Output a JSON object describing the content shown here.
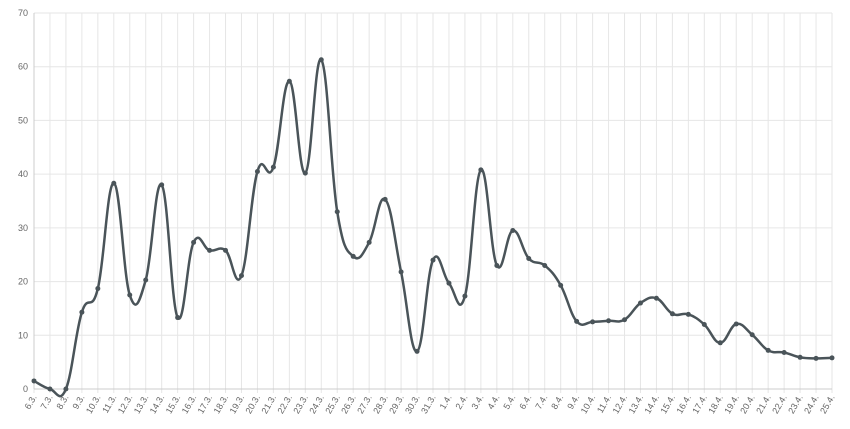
{
  "chart_data": {
    "type": "line",
    "categories": [
      "6.3.",
      "7.3.",
      "8.3.",
      "9.3.",
      "10.3.",
      "11.3.",
      "12.3.",
      "13.3.",
      "14.3.",
      "15.3.",
      "16.3.",
      "17.3.",
      "18.3.",
      "19.3.",
      "20.3.",
      "21.3.",
      "22.3.",
      "23.3.",
      "24.3.",
      "25.3.",
      "26.3.",
      "27.3.",
      "28.3.",
      "29.3.",
      "30.3.",
      "31.3.",
      "1.4.",
      "2.4.",
      "3.4.",
      "4.4.",
      "5.4.",
      "6.4.",
      "7.4.",
      "8.4.",
      "9.4.",
      "10.4.",
      "11.4.",
      "12.4.",
      "13.4.",
      "14.4.",
      "15.4.",
      "16.4.",
      "17.4.",
      "18.4.",
      "19.4.",
      "20.4.",
      "21.4.",
      "22.4.",
      "23.4.",
      "24.4.",
      "25.4."
    ],
    "values": [
      1.5,
      0,
      0,
      14.3,
      18.7,
      38.3,
      17.5,
      20.3,
      38,
      13.3,
      27.3,
      25.8,
      25.8,
      21.1,
      40.5,
      41.3,
      57.3,
      40.2,
      61.3,
      33,
      24.7,
      27.3,
      35.3,
      21.8,
      7,
      24,
      19.7,
      17.3,
      40.8,
      23,
      29.5,
      24.3,
      23,
      19.3,
      12.6,
      12.5,
      12.7,
      12.9,
      16,
      16.9,
      14,
      13.9,
      12,
      8.6,
      12.1,
      10.1,
      7.2,
      6.8,
      5.9,
      5.7,
      5.8
    ],
    "color": "#4a5459",
    "ylim": [
      0,
      70
    ],
    "yticks": [
      0,
      10,
      20,
      30,
      40,
      50,
      60,
      70
    ],
    "grid": true
  }
}
